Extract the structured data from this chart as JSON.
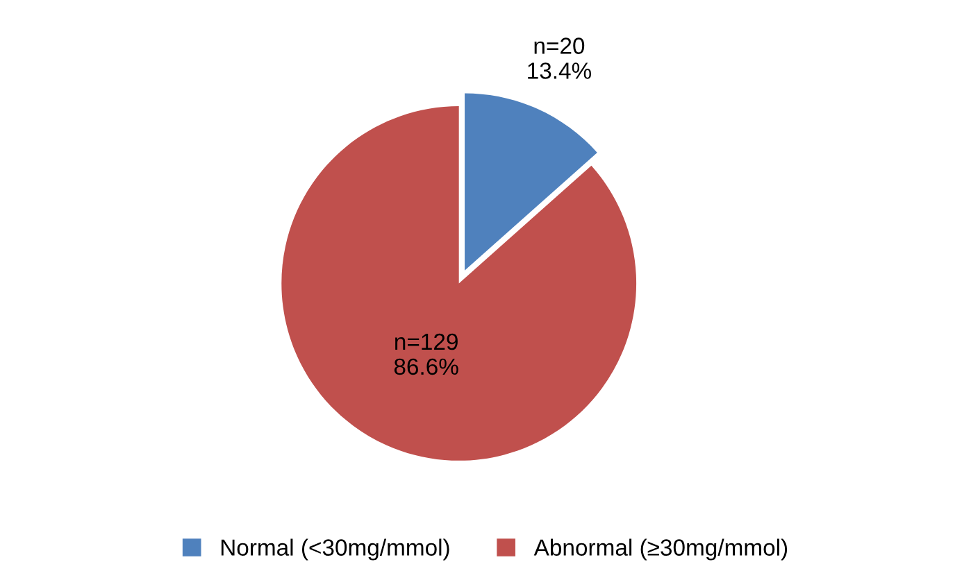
{
  "chart_data": {
    "type": "pie",
    "categories": [
      "Normal (<30mg/mmol)",
      "Abnormal (≥30mg/mmol)"
    ],
    "values": [
      20,
      129
    ],
    "colors": [
      "#4f81bd",
      "#c0504d"
    ],
    "value_labels": [
      "n=20\n13.4%",
      "n=129\n86.6%"
    ],
    "legend": "bottom"
  }
}
